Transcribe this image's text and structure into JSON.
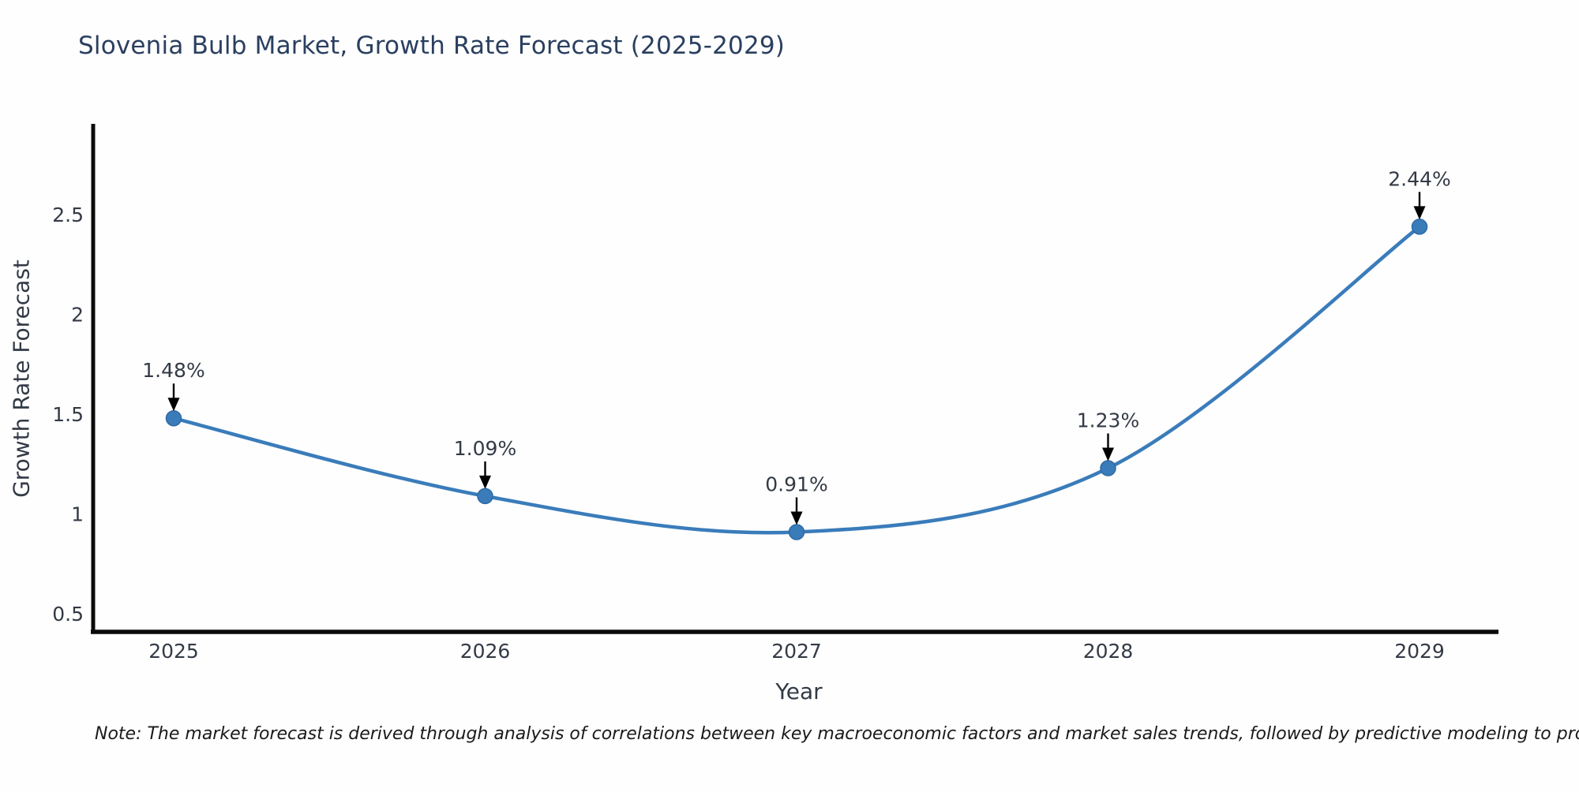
{
  "title": "Slovenia Bulb Market, Growth Rate Forecast (2025-2029)",
  "note": "Note: The market forecast is derived through analysis of correlations between key macroeconomic factors and market sales trends, followed by predictive modeling to project future sales",
  "chart_data": {
    "type": "line",
    "x": [
      2025,
      2026,
      2027,
      2028,
      2029
    ],
    "xticklabels": [
      "2025",
      "2026",
      "2027",
      "2028",
      "2029"
    ],
    "values": [
      1.48,
      1.09,
      0.91,
      1.23,
      2.44
    ],
    "point_labels": [
      "1.48%",
      "1.09%",
      "0.91%",
      "1.23%",
      "2.44%"
    ],
    "title": "Slovenia Bulb Market, Growth Rate Forecast (2025-2029)",
    "xlabel": "Year",
    "ylabel": "Growth Rate Forecast",
    "yticks": [
      0.5,
      1,
      1.5,
      2,
      2.5
    ],
    "ylim": [
      0.41,
      2.955
    ],
    "grid": false,
    "legend": false,
    "smooth": true,
    "line_color": "#3a7cba",
    "marker_color": "#3a7cba",
    "marker_edge_color": "#2e6aa5",
    "axis_color": "#0a0a0a",
    "tick_label_color": "#333a46",
    "annotation_color": "#333a46",
    "annotation_arrow_color": "#000000"
  }
}
